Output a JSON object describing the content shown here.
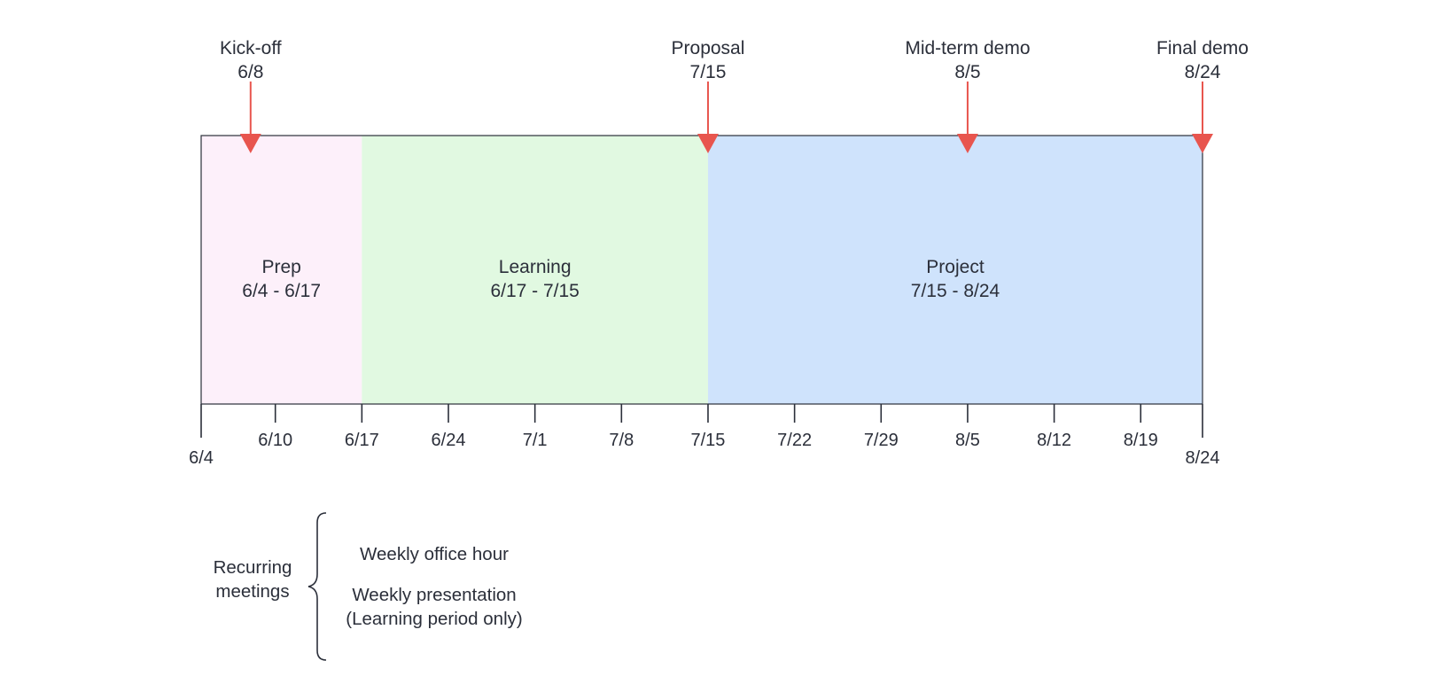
{
  "colors": {
    "stroke": "#2b2f3a",
    "milestone": "#e8554e",
    "prep": "#fdf0fa",
    "learning": "#e1f9e1",
    "project": "#cfe3fc",
    "text": "#2b2f3a"
  },
  "timeline": {
    "start": "6/4",
    "end": "8/24"
  },
  "phases": [
    {
      "id": "prep",
      "name": "Prep",
      "range": "6/4 - 6/17",
      "start": "6/4",
      "end": "6/17",
      "color_key": "prep"
    },
    {
      "id": "learning",
      "name": "Learning",
      "range": "6/17 - 7/15",
      "start": "6/17",
      "end": "7/15",
      "color_key": "learning"
    },
    {
      "id": "project",
      "name": "Project",
      "range": "7/15 - 8/24",
      "start": "7/15",
      "end": "8/24",
      "color_key": "project"
    }
  ],
  "milestones": [
    {
      "id": "kickoff",
      "name": "Kick-off",
      "date": "6/8"
    },
    {
      "id": "proposal",
      "name": "Proposal",
      "date": "7/15"
    },
    {
      "id": "midterm",
      "name": "Mid-term demo",
      "date": "8/5"
    },
    {
      "id": "final",
      "name": "Final demo",
      "date": "8/24"
    }
  ],
  "ticks": [
    {
      "label": "6/4",
      "major": true
    },
    {
      "label": "6/10",
      "major": false
    },
    {
      "label": "6/17",
      "major": false
    },
    {
      "label": "6/24",
      "major": false
    },
    {
      "label": "7/1",
      "major": false
    },
    {
      "label": "7/8",
      "major": false
    },
    {
      "label": "7/15",
      "major": false
    },
    {
      "label": "7/22",
      "major": false
    },
    {
      "label": "7/29",
      "major": false
    },
    {
      "label": "8/5",
      "major": false
    },
    {
      "label": "8/12",
      "major": false
    },
    {
      "label": "8/19",
      "major": false
    },
    {
      "label": "8/24",
      "major": true
    }
  ],
  "recurring": {
    "label_lines": [
      "Recurring",
      "meetings"
    ],
    "items": [
      {
        "lines": [
          "Weekly office hour"
        ]
      },
      {
        "lines": [
          "Weekly presentation",
          "(Learning period only)"
        ]
      }
    ]
  }
}
